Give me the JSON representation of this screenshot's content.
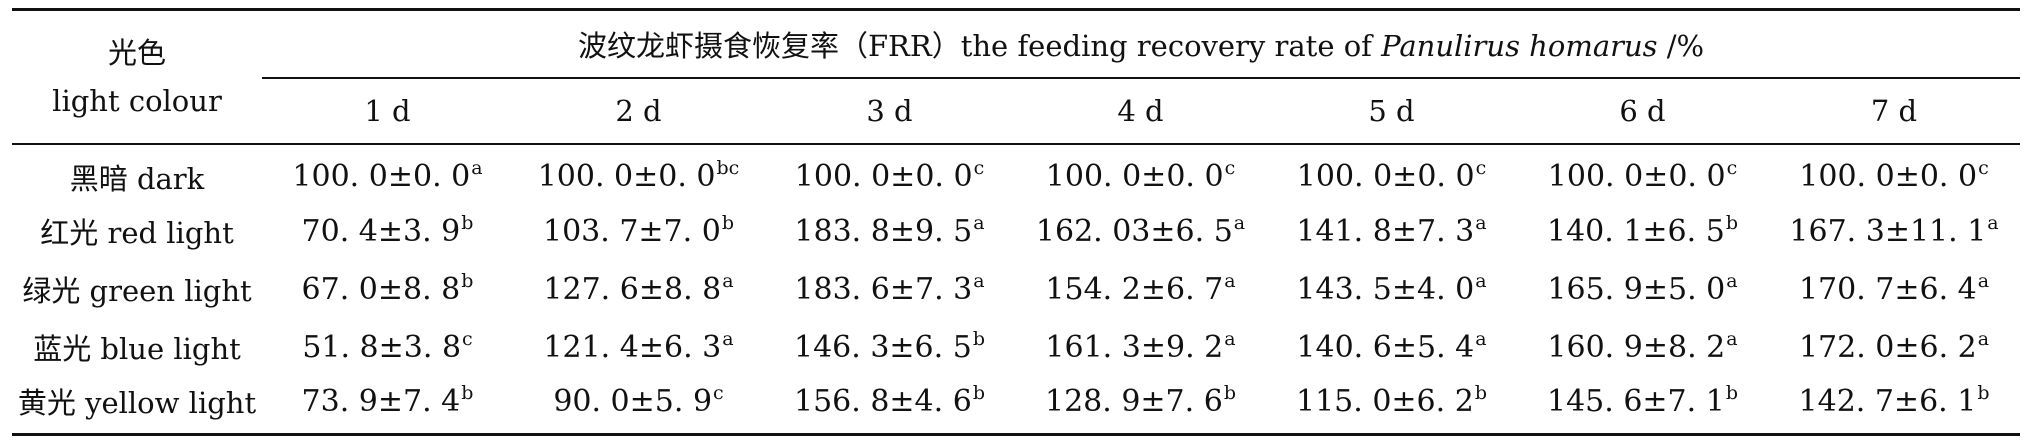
{
  "table": {
    "stub_header_cn": "光色",
    "stub_header_en": "light colour",
    "title_prefix": "波纹龙虾摄食恢复率（FRR）the feeding recovery rate of ",
    "title_species": "Panulirus homarus",
    "title_suffix": " /%",
    "days": [
      "1 d",
      "2 d",
      "3 d",
      "4 d",
      "5 d",
      "6 d",
      "7 d"
    ],
    "rows": [
      {
        "label": "黑暗 dark",
        "cells": [
          {
            "v": "100. 0±0. 0",
            "s": "a"
          },
          {
            "v": "100. 0±0. 0",
            "s": "bc"
          },
          {
            "v": "100. 0±0. 0",
            "s": "c"
          },
          {
            "v": "100. 0±0. 0",
            "s": "c"
          },
          {
            "v": "100. 0±0. 0",
            "s": "c"
          },
          {
            "v": "100. 0±0. 0",
            "s": "c"
          },
          {
            "v": "100. 0±0. 0",
            "s": "c"
          }
        ]
      },
      {
        "label": "红光 red light",
        "cells": [
          {
            "v": "70. 4±3. 9",
            "s": "b"
          },
          {
            "v": "103. 7±7. 0",
            "s": "b"
          },
          {
            "v": "183. 8±9. 5",
            "s": "a"
          },
          {
            "v": "162. 03±6. 5",
            "s": "a"
          },
          {
            "v": "141. 8±7. 3",
            "s": "a"
          },
          {
            "v": "140. 1±6. 5",
            "s": "b"
          },
          {
            "v": "167. 3±11. 1",
            "s": "a"
          }
        ]
      },
      {
        "label": "绿光 green light",
        "cells": [
          {
            "v": "67. 0±8. 8",
            "s": "b"
          },
          {
            "v": "127. 6±8. 8",
            "s": "a"
          },
          {
            "v": "183. 6±7. 3",
            "s": "a"
          },
          {
            "v": "154. 2±6. 7",
            "s": "a"
          },
          {
            "v": "143. 5±4. 0",
            "s": "a"
          },
          {
            "v": "165. 9±5. 0",
            "s": "a"
          },
          {
            "v": "170. 7±6. 4",
            "s": "a"
          }
        ]
      },
      {
        "label": "蓝光 blue light",
        "cells": [
          {
            "v": "51. 8±3. 8",
            "s": "c"
          },
          {
            "v": "121. 4±6. 3",
            "s": "a"
          },
          {
            "v": "146. 3±6. 5",
            "s": "b"
          },
          {
            "v": "161. 3±9. 2",
            "s": "a"
          },
          {
            "v": "140. 6±5. 4",
            "s": "a"
          },
          {
            "v": "160. 9±8. 2",
            "s": "a"
          },
          {
            "v": "172. 0±6. 2",
            "s": "a"
          }
        ]
      },
      {
        "label": "黄光 yellow light",
        "cells": [
          {
            "v": "73. 9±7. 4",
            "s": "b"
          },
          {
            "v": "90. 0±5. 9",
            "s": "c"
          },
          {
            "v": "156. 8±4. 6",
            "s": "b"
          },
          {
            "v": "128. 9±7. 6",
            "s": "b"
          },
          {
            "v": "115. 0±6. 2",
            "s": "b"
          },
          {
            "v": "145. 6±7. 1",
            "s": "b"
          },
          {
            "v": "142. 7±6. 1",
            "s": "b"
          }
        ]
      }
    ]
  }
}
